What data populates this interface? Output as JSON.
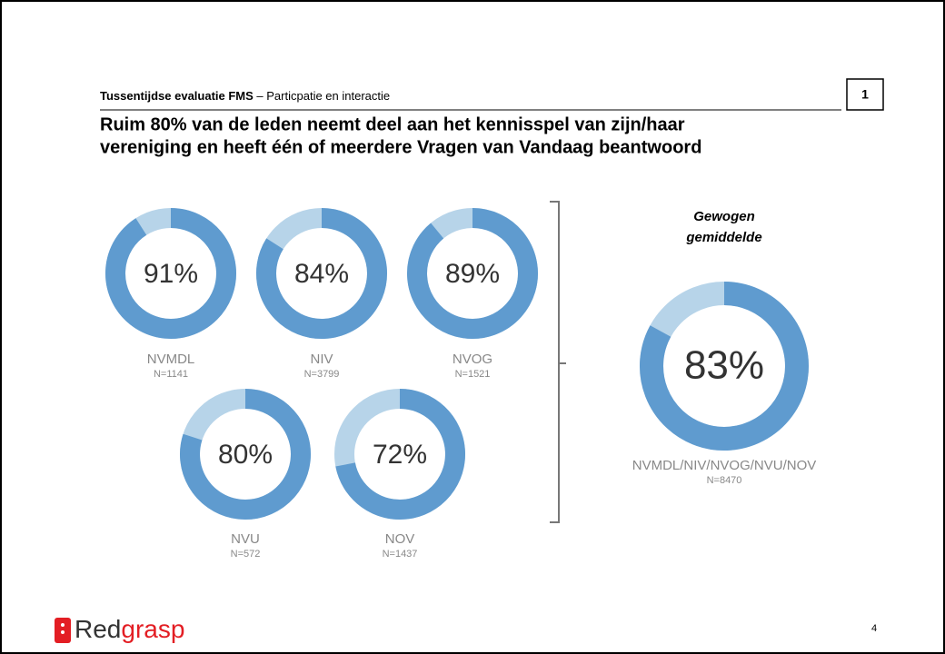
{
  "header": {
    "title": "Tussentijdse evaluatie FMS",
    "subtitle": " – Particpatie en interactie",
    "section": "1"
  },
  "headline": [
    "Ruim 80% van de leden neemt deel aan het kennisspel van zijn/haar",
    "vereniging en heeft één of meerdere Vragen van Vandaag beantwoord"
  ],
  "logo": [
    "Red",
    "grasp"
  ],
  "page_number": "4",
  "chart_data": [
    {
      "type": "donut",
      "name": "NVMDL",
      "subtitle": "N=1141",
      "values": [
        91
      ],
      "value_labels": [
        "91%"
      ],
      "ylim": [
        0,
        100
      ],
      "color": "#5f9bcf",
      "rest_color": "#b7d4e9"
    },
    {
      "type": "donut",
      "name": "NIV",
      "subtitle": "N=3799",
      "values": [
        84
      ],
      "value_labels": [
        "84%"
      ],
      "ylim": [
        0,
        100
      ],
      "color": "#5f9bcf",
      "rest_color": "#b7d4e9"
    },
    {
      "type": "donut",
      "name": "NVOG",
      "subtitle": "N=1521",
      "values": [
        89
      ],
      "value_labels": [
        "89%"
      ],
      "ylim": [
        0,
        100
      ],
      "color": "#5f9bcf",
      "rest_color": "#b7d4e9"
    },
    {
      "type": "donut",
      "name": "NVU",
      "subtitle": "N=572",
      "values": [
        80
      ],
      "value_labels": [
        "80%"
      ],
      "ylim": [
        0,
        100
      ],
      "color": "#5f9bcf",
      "rest_color": "#b7d4e9"
    },
    {
      "type": "donut",
      "name": "NOV",
      "subtitle": "N=1437",
      "values": [
        72
      ],
      "value_labels": [
        "72%"
      ],
      "ylim": [
        0,
        100
      ],
      "color": "#5f9bcf",
      "rest_color": "#b7d4e9"
    },
    {
      "type": "donut",
      "title": [
        "Gewogen",
        "gemiddelde"
      ],
      "name": "NVMDL/NIV/NVOG/NVU/NOV",
      "subtitle": "N=8470",
      "values": [
        83
      ],
      "value_labels": [
        "83%"
      ],
      "ylim": [
        0,
        100
      ],
      "color": "#5f9bcf",
      "rest_color": "#b7d4e9"
    }
  ]
}
